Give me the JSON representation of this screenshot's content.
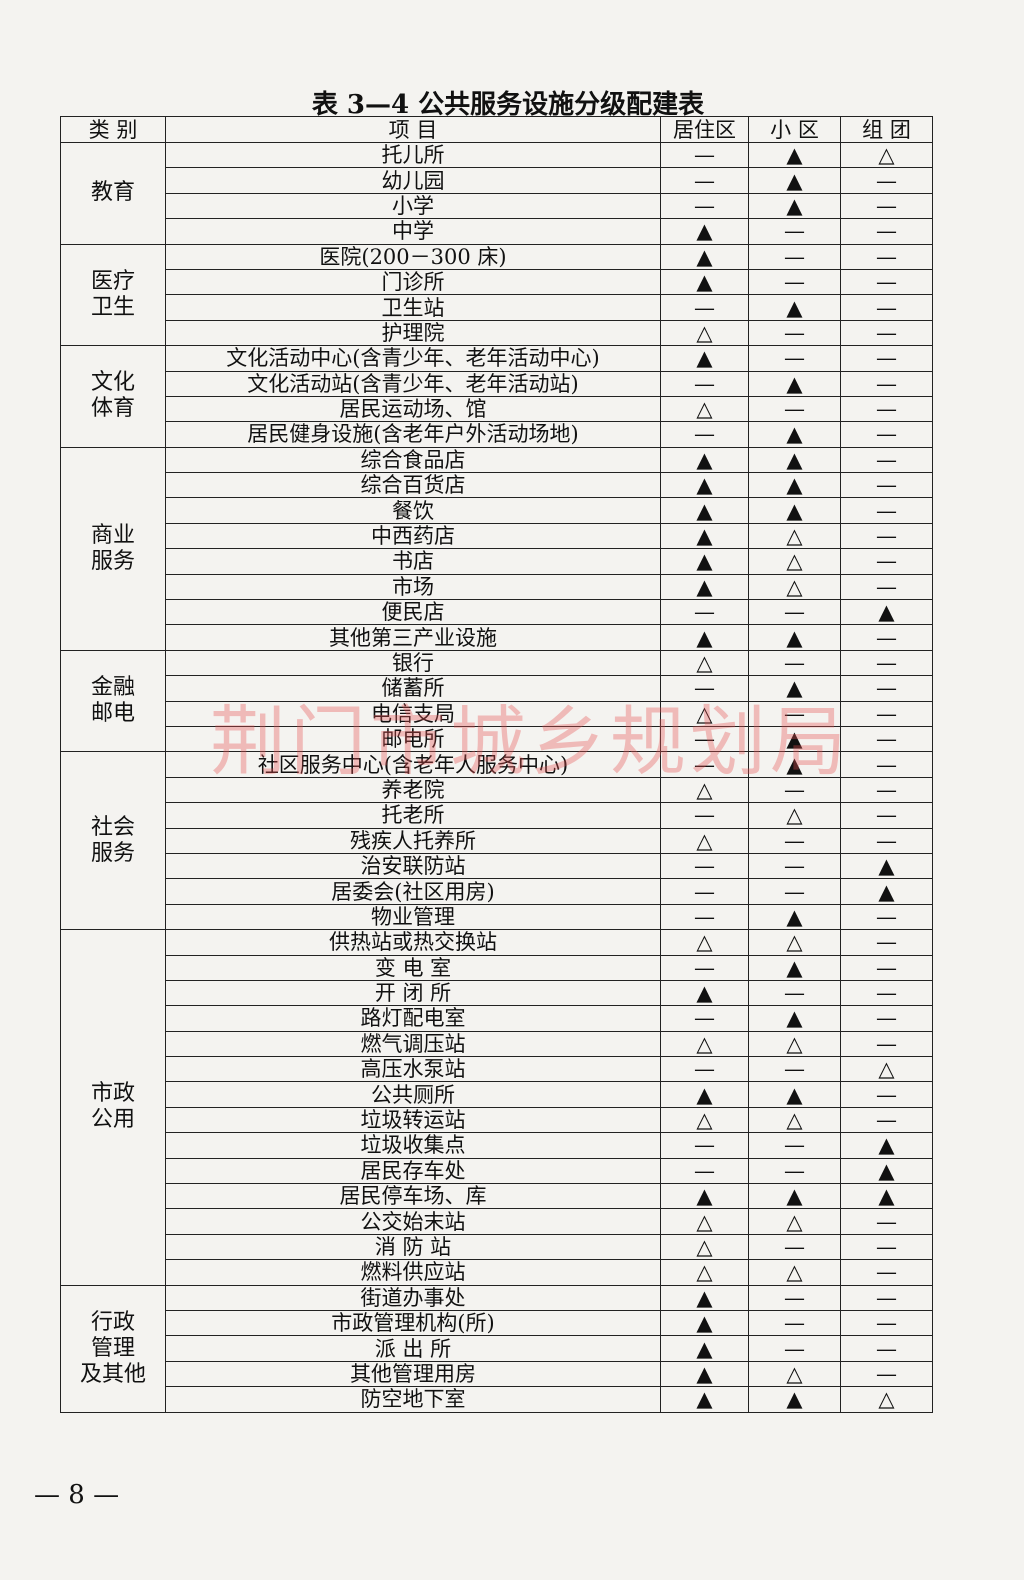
{
  "header": {
    "title": "表 3—4 公共服务设施分级配建表"
  },
  "table": {
    "columns": [
      "类 别",
      "项 目",
      "居住区",
      "小 区",
      "组 团"
    ],
    "groups": [
      {
        "category": "教育",
        "rows": [
          [
            "托儿所",
            "—",
            "▲",
            "△"
          ],
          [
            "幼儿园",
            "—",
            "▲",
            "—"
          ],
          [
            "小学",
            "—",
            "▲",
            "—"
          ],
          [
            "中学",
            "▲",
            "—",
            "—"
          ]
        ]
      },
      {
        "category": "医疗\n卫生",
        "rows": [
          [
            "医院(200－300 床)",
            "▲",
            "—",
            "—"
          ],
          [
            "门诊所",
            "▲",
            "—",
            "—"
          ],
          [
            "卫生站",
            "—",
            "▲",
            "—"
          ],
          [
            "护理院",
            "△",
            "—",
            "—"
          ]
        ]
      },
      {
        "category": "文化\n体育",
        "rows": [
          [
            "文化活动中心(含青少年、老年活动中心)",
            "▲",
            "—",
            "—"
          ],
          [
            "文化活动站(含青少年、老年活动站)",
            "—",
            "▲",
            "—"
          ],
          [
            "居民运动场、馆",
            "△",
            "—",
            "—"
          ],
          [
            "居民健身设施(含老年户外活动场地)",
            "—",
            "▲",
            "—"
          ]
        ]
      },
      {
        "category": "商业\n服务",
        "rows": [
          [
            "综合食品店",
            "▲",
            "▲",
            "—"
          ],
          [
            "综合百货店",
            "▲",
            "▲",
            "—"
          ],
          [
            "餐饮",
            "▲",
            "▲",
            "—"
          ],
          [
            "中西药店",
            "▲",
            "△",
            "—"
          ],
          [
            "书店",
            "▲",
            "△",
            "—"
          ],
          [
            "市场",
            "▲",
            "△",
            "—"
          ],
          [
            "便民店",
            "—",
            "—",
            "▲"
          ],
          [
            "其他第三产业设施",
            "▲",
            "▲",
            "—"
          ]
        ]
      },
      {
        "category": "金融\n邮电",
        "rows": [
          [
            "银行",
            "△",
            "—",
            "—"
          ],
          [
            "储蓄所",
            "—",
            "▲",
            "—"
          ],
          [
            "电信支局",
            "△",
            "—",
            "—"
          ],
          [
            "邮电所",
            "—",
            "▲",
            "—"
          ]
        ]
      },
      {
        "category": "社会\n服务",
        "rows": [
          [
            "社区服务中心(含老年人服务中心)",
            "—",
            "▲",
            "—"
          ],
          [
            "养老院",
            "△",
            "—",
            "—"
          ],
          [
            "托老所",
            "—",
            "△",
            "—"
          ],
          [
            "残疾人托养所",
            "△",
            "—",
            "—"
          ],
          [
            "治安联防站",
            "—",
            "—",
            "▲"
          ],
          [
            "居委会(社区用房)",
            "—",
            "—",
            "▲"
          ],
          [
            "物业管理",
            "—",
            "▲",
            "—"
          ]
        ]
      },
      {
        "category": "市政\n公用",
        "rows": [
          [
            "供热站或热交换站",
            "△",
            "△",
            "—"
          ],
          [
            "变 电 室",
            "—",
            "▲",
            "—"
          ],
          [
            "开 闭 所",
            "▲",
            "—",
            "—"
          ],
          [
            "路灯配电室",
            "—",
            "▲",
            "—"
          ],
          [
            "燃气调压站",
            "△",
            "△",
            "—"
          ],
          [
            "高压水泵站",
            "—",
            "—",
            "△"
          ],
          [
            "公共厕所",
            "▲",
            "▲",
            "—"
          ],
          [
            "垃圾转运站",
            "△",
            "△",
            "—"
          ],
          [
            "垃圾收集点",
            "—",
            "—",
            "▲"
          ],
          [
            "居民存车处",
            "—",
            "—",
            "▲"
          ],
          [
            "居民停车场、库",
            "▲",
            "▲",
            "▲"
          ],
          [
            "公交始末站",
            "△",
            "△",
            "—"
          ],
          [
            "消 防 站",
            "△",
            "—",
            "—"
          ],
          [
            "燃料供应站",
            "△",
            "△",
            "—"
          ]
        ]
      },
      {
        "category": "行政\n管理\n及其他",
        "rows": [
          [
            "街道办事处",
            "▲",
            "—",
            "—"
          ],
          [
            "市政管理机构(所)",
            "▲",
            "—",
            "—"
          ],
          [
            "派 出 所",
            "▲",
            "—",
            "—"
          ],
          [
            "其他管理用房",
            "▲",
            "△",
            "—"
          ],
          [
            "防空地下室",
            "▲",
            "▲",
            "△"
          ]
        ]
      }
    ]
  },
  "watermark": "荆门市城乡规划局",
  "footer": {
    "page": "— 8 —"
  }
}
